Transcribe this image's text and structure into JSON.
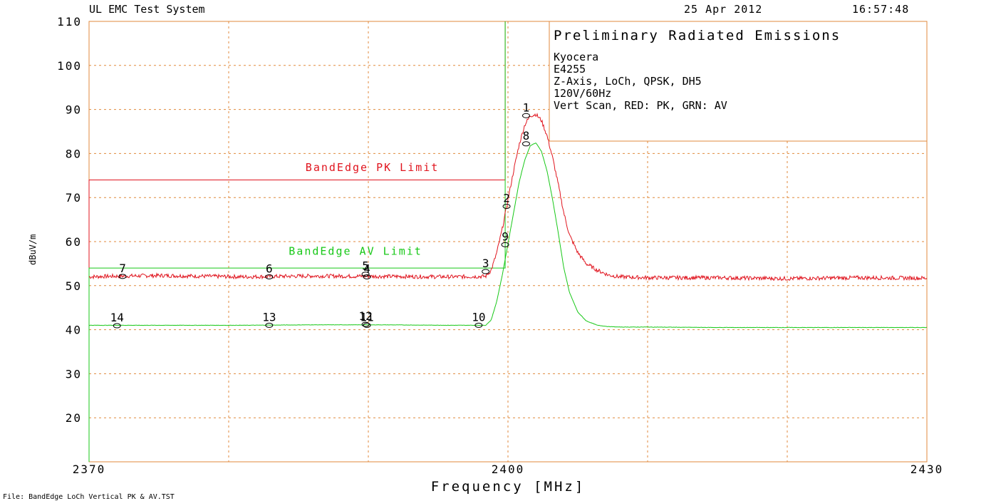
{
  "header": {
    "system_title": "UL EMC Test System",
    "date": "25 Apr 2012",
    "time": "16:57:48"
  },
  "info_box": {
    "title": "Preliminary Radiated Emissions",
    "lines": [
      "Kyocera",
      "E4255",
      "Z-Axis, LoCh, QPSK, DH5",
      "120V/60Hz",
      "Vert Scan, RED: PK, GRN: AV"
    ]
  },
  "footer": {
    "file_label": "File: BandEdge LoCh Vertical PK & AV.TST"
  },
  "colors": {
    "axis": "#e08a3c",
    "grid": "#e08a3c",
    "text": "#000000",
    "peak": "#e0141e",
    "average": "#18c818"
  },
  "chart_data": {
    "type": "line",
    "title": "Preliminary Radiated Emissions",
    "xlabel": "Frequency [MHz]",
    "ylabel": "dBuV/m",
    "xlim": [
      2370,
      2430
    ],
    "ylim": [
      10,
      110
    ],
    "x_ticks": [
      "2370",
      "2400",
      "2430"
    ],
    "y_ticks": [
      "20",
      "30",
      "40",
      "50",
      "60",
      "70",
      "80",
      "90",
      "100",
      "110"
    ],
    "grid": true,
    "series": [
      {
        "name": "PK",
        "color": "#e0141e",
        "x": [
          2370,
          2371,
          2375,
          2381,
          2386,
          2391,
          2396,
          2398.4,
          2398.8,
          2399.2,
          2399.6,
          2400,
          2400.4,
          2400.8,
          2401.2,
          2401.6,
          2402,
          2402.4,
          2402.8,
          2403.2,
          2403.6,
          2404,
          2404.4,
          2405,
          2405.6,
          2406.4,
          2407.2,
          2408,
          2410,
          2415,
          2420,
          2425,
          2430
        ],
        "y": [
          52.0,
          52.1,
          52.3,
          52.0,
          52.2,
          52.1,
          52.0,
          52.1,
          53.5,
          57.5,
          63.0,
          69.5,
          76.0,
          82.0,
          86.5,
          88.6,
          88.9,
          87.5,
          84.0,
          79.0,
          73.0,
          66.5,
          61.5,
          57.5,
          55.0,
          53.5,
          52.4,
          52.0,
          51.8,
          51.8,
          51.6,
          51.8,
          51.7
        ]
      },
      {
        "name": "AV",
        "color": "#18c818",
        "x": [
          2370,
          2371,
          2375,
          2381,
          2386,
          2391,
          2396,
          2398.4,
          2398.8,
          2399.2,
          2399.6,
          2400,
          2400.4,
          2400.8,
          2401.2,
          2401.6,
          2402,
          2402.4,
          2402.8,
          2403.2,
          2403.6,
          2404,
          2404.4,
          2405,
          2405.6,
          2406.4,
          2407.2,
          2408,
          2410,
          2415,
          2420,
          2425,
          2430
        ],
        "y": [
          41.0,
          41.0,
          41.0,
          41.0,
          41.1,
          41.1,
          41.0,
          41.0,
          42.2,
          46.5,
          52.5,
          59.5,
          66.5,
          73.5,
          78.5,
          81.8,
          82.4,
          80.5,
          76.0,
          69.5,
          62.0,
          54.0,
          48.5,
          44.0,
          42.0,
          41.0,
          40.7,
          40.6,
          40.6,
          40.5,
          40.5,
          40.5,
          40.5
        ]
      }
    ],
    "limit_lines": [
      {
        "label": "BandEdge PK Limit",
        "color": "#e0141e",
        "x": [
          2370,
          2399.8
        ],
        "y": 74,
        "label_x": 2385.5,
        "label_y": 76
      },
      {
        "label": "BandEdge AV Limit",
        "color": "#18c818",
        "x": [
          2370,
          2399.8
        ],
        "y": 54,
        "label_x": 2384.3,
        "label_y": 57
      }
    ],
    "markers": [
      {
        "label": "1",
        "x": 2401.3,
        "y": 88.6,
        "color": "#e0141e"
      },
      {
        "label": "2",
        "x": 2399.9,
        "y": 68.0,
        "color": "#e0141e"
      },
      {
        "label": "3",
        "x": 2398.4,
        "y": 53.2,
        "color": "#e0141e"
      },
      {
        "label": "4",
        "x": 2389.9,
        "y": 52.0,
        "color": "#e0141e"
      },
      {
        "label": "5",
        "x": 2389.8,
        "y": 52.6,
        "color": "#e0141e"
      },
      {
        "label": "6",
        "x": 2382.9,
        "y": 52.0,
        "color": "#e0141e"
      },
      {
        "label": "7",
        "x": 2372.4,
        "y": 52.1,
        "color": "#e0141e"
      },
      {
        "label": "8",
        "x": 2401.3,
        "y": 82.2,
        "color": "#18c818"
      },
      {
        "label": "9",
        "x": 2399.8,
        "y": 59.3,
        "color": "#18c818"
      },
      {
        "label": "10",
        "x": 2397.9,
        "y": 41.0,
        "color": "#18c818"
      },
      {
        "label": "11",
        "x": 2389.9,
        "y": 41.0,
        "color": "#18c818"
      },
      {
        "label": "12",
        "x": 2389.8,
        "y": 41.2,
        "color": "#18c818"
      },
      {
        "label": "13",
        "x": 2382.9,
        "y": 41.0,
        "color": "#18c818"
      },
      {
        "label": "14",
        "x": 2372.0,
        "y": 40.9,
        "color": "#18c818"
      }
    ]
  }
}
